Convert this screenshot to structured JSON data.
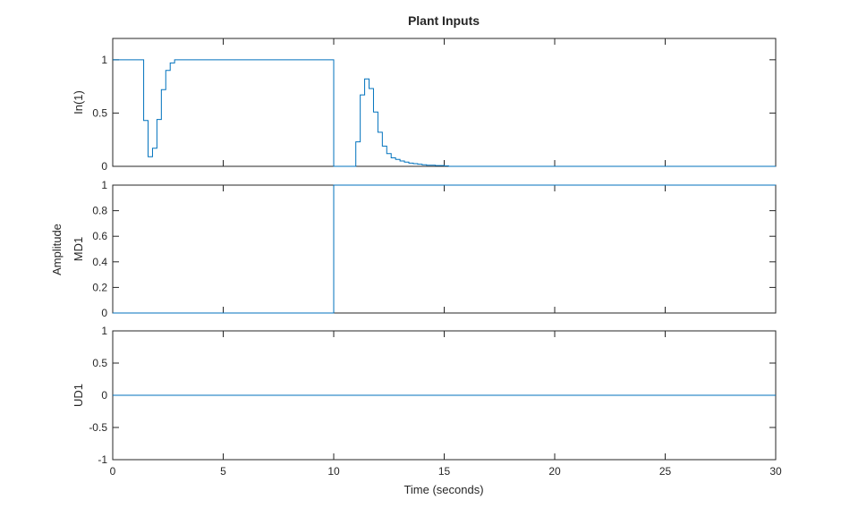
{
  "figure": {
    "title": "Plant Inputs",
    "xlabel": "Time (seconds)",
    "shared_ylabel": "Amplitude"
  },
  "chart_data": [
    {
      "type": "line",
      "step": true,
      "ylabel": "In(1)",
      "xlim": [
        0,
        30
      ],
      "ylim": [
        0,
        1.2
      ],
      "xticks": [
        0,
        5,
        10,
        15,
        20,
        25,
        30
      ],
      "yticks": [
        0,
        0.5,
        1
      ],
      "ytick_labels": [
        "0",
        "0.5",
        "1"
      ],
      "color": "#0072bd",
      "series": [
        {
          "x": [
            0,
            1.4,
            1.4,
            1.6,
            1.6,
            1.8,
            1.8,
            2.0,
            2.0,
            2.2,
            2.2,
            2.4,
            2.4,
            2.6,
            2.6,
            2.8,
            2.8,
            10.0,
            10.0,
            11.0,
            11.0,
            11.2,
            11.2,
            11.4,
            11.4,
            11.6,
            11.6,
            11.8,
            11.8,
            12.0,
            12.0,
            12.2,
            12.2,
            12.4,
            12.4,
            12.6,
            12.6,
            12.8,
            12.8,
            13.0,
            13.0,
            13.2,
            13.2,
            13.4,
            13.4,
            13.6,
            13.6,
            13.8,
            13.8,
            14.0,
            14.0,
            14.2,
            14.2,
            14.6,
            14.6,
            15.0,
            15.0,
            15.2,
            15.2,
            30
          ],
          "y": [
            1.0,
            1.0,
            0.43,
            0.43,
            0.09,
            0.09,
            0.17,
            0.17,
            0.44,
            0.44,
            0.72,
            0.72,
            0.9,
            0.9,
            0.97,
            0.97,
            1.0,
            1.0,
            0.0,
            0.0,
            0.23,
            0.23,
            0.67,
            0.67,
            0.82,
            0.82,
            0.73,
            0.73,
            0.51,
            0.51,
            0.32,
            0.32,
            0.19,
            0.19,
            0.12,
            0.12,
            0.08,
            0.08,
            0.065,
            0.065,
            0.05,
            0.05,
            0.04,
            0.04,
            0.03,
            0.03,
            0.025,
            0.025,
            0.02,
            0.02,
            0.015,
            0.015,
            0.01,
            0.01,
            0.007,
            0.007,
            0.004,
            0.004,
            0.0,
            0.0
          ]
        }
      ]
    },
    {
      "type": "line",
      "step": true,
      "ylabel": "MD1",
      "xlim": [
        0,
        30
      ],
      "ylim": [
        0,
        1
      ],
      "xticks": [
        0,
        5,
        10,
        15,
        20,
        25,
        30
      ],
      "yticks": [
        0,
        0.2,
        0.4,
        0.6,
        0.8,
        1
      ],
      "ytick_labels": [
        "0",
        "0.2",
        "0.4",
        "0.6",
        "0.8",
        "1"
      ],
      "color": "#0072bd",
      "series": [
        {
          "x": [
            0,
            10,
            10,
            30
          ],
          "y": [
            0,
            0,
            1,
            1
          ]
        }
      ]
    },
    {
      "type": "line",
      "step": true,
      "ylabel": "UD1",
      "xlim": [
        0,
        30
      ],
      "ylim": [
        -1,
        1
      ],
      "xticks": [
        0,
        5,
        10,
        15,
        20,
        25,
        30
      ],
      "xtick_labels": [
        "0",
        "5",
        "10",
        "15",
        "20",
        "25",
        "30"
      ],
      "yticks": [
        -1,
        -0.5,
        0,
        0.5,
        1
      ],
      "ytick_labels": [
        "-1",
        "-0.5",
        "0",
        "0.5",
        "1"
      ],
      "color": "#0072bd",
      "series": [
        {
          "x": [
            0,
            30
          ],
          "y": [
            0,
            0
          ]
        }
      ]
    }
  ]
}
